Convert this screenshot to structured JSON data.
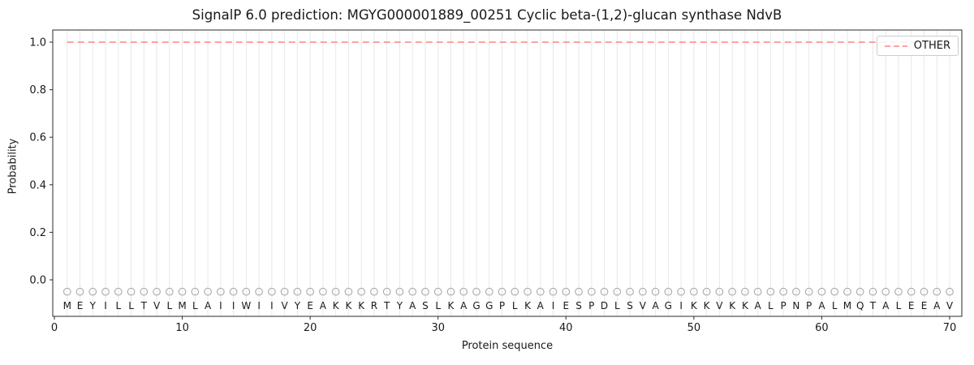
{
  "title": "SignalP 6.0 prediction: MGYG000001889_00251 Cyclic beta-(1,2)-glucan synthase NdvB",
  "legend": {
    "label": "OTHER",
    "line_color": "#ff8080"
  },
  "axes": {
    "x_label": "Protein sequence",
    "y_label": "Probability",
    "x_ticks": [
      0,
      10,
      20,
      30,
      40,
      50,
      60,
      70
    ],
    "y_ticks": [
      "0.0",
      "0.2",
      "0.4",
      "0.6",
      "0.8",
      "1.0"
    ]
  },
  "sequence": "MEYILLTVLMLAIIWIIVYEAKKKRTYASLKAGGPLKAIESPDLSVAGIKKVKKALPNPALMQTALEEAV",
  "chart_data": {
    "type": "line",
    "title": "SignalP 6.0 prediction: MGYG000001889_00251 Cyclic beta-(1,2)-glucan synthase NdvB",
    "xlabel": "Protein sequence",
    "ylabel": "Probability",
    "xlim": [
      0,
      71
    ],
    "ylim": [
      -0.15,
      1.05
    ],
    "grid": "vertical-line-per-residue",
    "legend_position": "upper right",
    "series": [
      {
        "name": "OTHER",
        "style": "dashed",
        "color": "#ff8080",
        "x": [
          1,
          2,
          3,
          4,
          5,
          6,
          7,
          8,
          9,
          10,
          11,
          12,
          13,
          14,
          15,
          16,
          17,
          18,
          19,
          20,
          21,
          22,
          23,
          24,
          25,
          26,
          27,
          28,
          29,
          30,
          31,
          32,
          33,
          34,
          35,
          36,
          37,
          38,
          39,
          40,
          41,
          42,
          43,
          44,
          45,
          46,
          47,
          48,
          49,
          50,
          51,
          52,
          53,
          54,
          55,
          56,
          57,
          58,
          59,
          60,
          61,
          62,
          63,
          64,
          65,
          66,
          67,
          68,
          69,
          70
        ],
        "values": [
          1.0,
          1.0,
          1.0,
          1.0,
          1.0,
          1.0,
          1.0,
          1.0,
          1.0,
          1.0,
          1.0,
          1.0,
          1.0,
          1.0,
          1.0,
          1.0,
          1.0,
          1.0,
          1.0,
          1.0,
          1.0,
          1.0,
          1.0,
          1.0,
          1.0,
          1.0,
          1.0,
          1.0,
          1.0,
          1.0,
          1.0,
          1.0,
          1.0,
          1.0,
          1.0,
          1.0,
          1.0,
          1.0,
          1.0,
          1.0,
          1.0,
          1.0,
          1.0,
          1.0,
          1.0,
          1.0,
          1.0,
          1.0,
          1.0,
          1.0,
          1.0,
          1.0,
          1.0,
          1.0,
          1.0,
          1.0,
          1.0,
          1.0,
          1.0,
          1.0,
          1.0,
          1.0,
          1.0,
          1.0,
          1.0,
          1.0,
          1.0,
          1.0,
          1.0,
          1.0
        ]
      }
    ],
    "residue_markers": {
      "symbol": "O",
      "value": -0.05,
      "color": "#ababab"
    }
  }
}
